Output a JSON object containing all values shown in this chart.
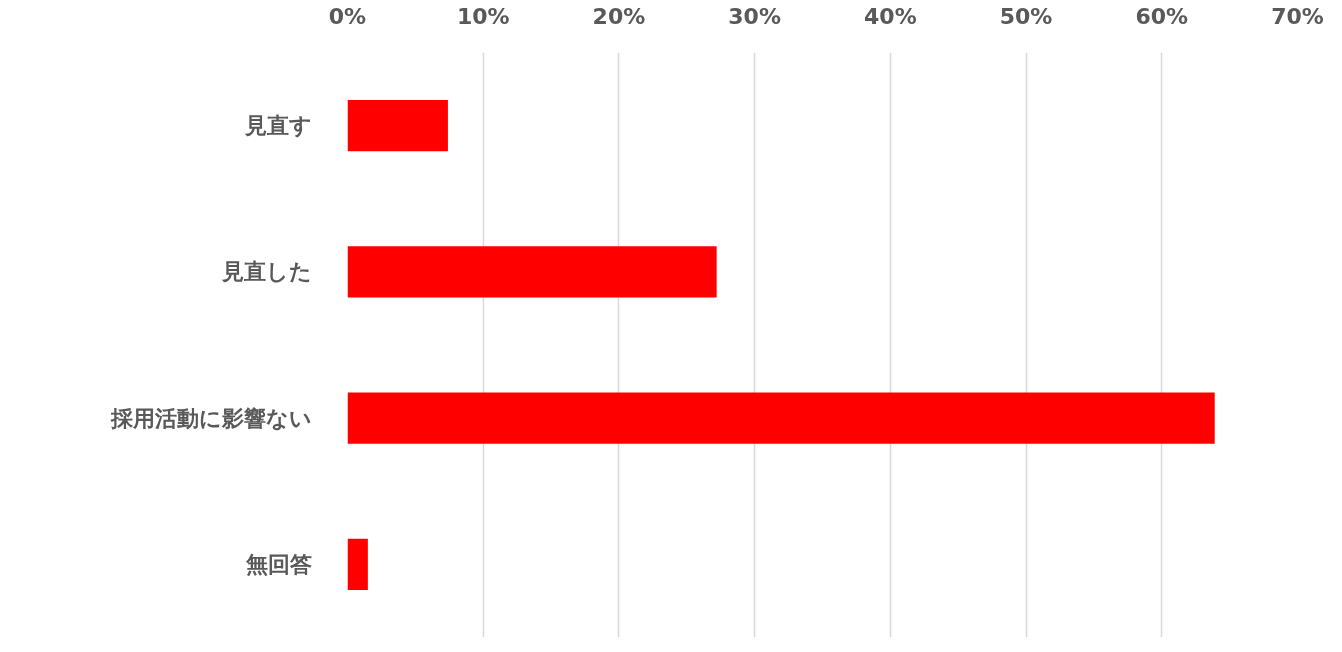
{
  "chart_data": {
    "type": "bar",
    "orientation": "horizontal",
    "categories": [
      "見直す",
      "見直した",
      "採用活動に影響ない",
      "無回答"
    ],
    "values": [
      7.4,
      27.2,
      63.9,
      1.5
    ],
    "color": "#ff0000",
    "xlim": [
      0,
      70
    ],
    "xticks": [
      {
        "value": 0,
        "label": "0%"
      },
      {
        "value": 10,
        "label": "10%"
      },
      {
        "value": 20,
        "label": "20%"
      },
      {
        "value": 30,
        "label": "30%"
      },
      {
        "value": 40,
        "label": "40%"
      },
      {
        "value": 50,
        "label": "50%"
      },
      {
        "value": 60,
        "label": "60%"
      },
      {
        "value": 70,
        "label": "70%"
      }
    ],
    "grid": "x"
  }
}
